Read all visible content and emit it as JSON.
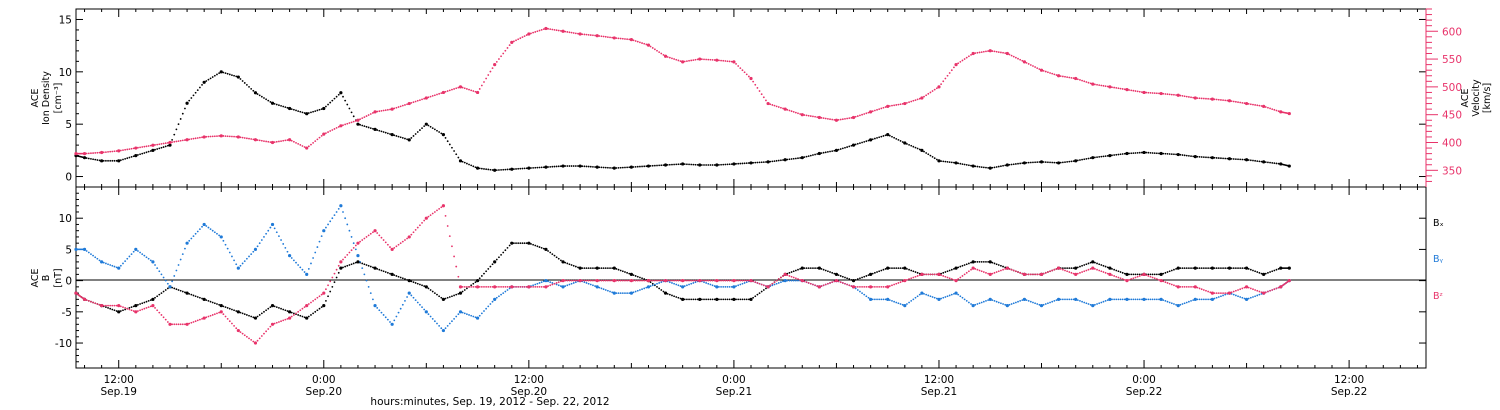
{
  "colors": {
    "black": "#000000",
    "pink": "#e8336a",
    "blue": "#1f7ad8"
  },
  "xaxis": {
    "title": "hours:minutes, Sep. 19, 2012 - Sep. 22, 2012",
    "ticks": [
      {
        "time": "12:00",
        "date": "Sep.19",
        "hours": 12
      },
      {
        "time": "0:00",
        "date": "Sep.20",
        "hours": 24
      },
      {
        "time": "12:00",
        "date": "Sep.20",
        "hours": 36
      },
      {
        "time": "0:00",
        "date": "Sep.21",
        "hours": 48
      },
      {
        "time": "12:00",
        "date": "Sep.21",
        "hours": 60
      },
      {
        "time": "0:00",
        "date": "Sep.22",
        "hours": 72
      },
      {
        "time": "12:00",
        "date": "Sep.22",
        "hours": 84
      }
    ],
    "range_hours": [
      9.5,
      88.5
    ]
  },
  "chart_data": [
    {
      "type": "scatter",
      "panel": "top",
      "ylabel_left": [
        "ACE",
        "Ion Density",
        "[cm⁻³]"
      ],
      "ylabel_right": [
        "ACE",
        "Velocity",
        "[km/s]"
      ],
      "ylim_left": [
        -1,
        16
      ],
      "ylim_right": [
        320,
        640
      ],
      "left_ticks": [
        "0",
        "5",
        "10",
        "15"
      ],
      "right_ticks": [
        "350",
        "400",
        "450",
        "500",
        "550",
        "600"
      ],
      "series": [
        {
          "name": "Ion Density",
          "color": "#000000",
          "axis": "left",
          "x": [
            9.5,
            10,
            11,
            12,
            13,
            14,
            15,
            16,
            17,
            18,
            19,
            20,
            21,
            22,
            23,
            24,
            25,
            26,
            27,
            28,
            29,
            30,
            31,
            32,
            33,
            34,
            35,
            36,
            37,
            38,
            39,
            40,
            41,
            42,
            43,
            44,
            45,
            46,
            47,
            48,
            49,
            50,
            51,
            52,
            53,
            54,
            55,
            56,
            57,
            58,
            59,
            60,
            61,
            62,
            63,
            64,
            65,
            66,
            67,
            68,
            69,
            70,
            71,
            72,
            73,
            74,
            75,
            76,
            77,
            78,
            79,
            80,
            80.5
          ],
          "y": [
            2.0,
            1.8,
            1.5,
            1.5,
            2.0,
            2.5,
            3.0,
            7.0,
            9.0,
            10.0,
            9.5,
            8.0,
            7.0,
            6.5,
            6.0,
            6.5,
            8.0,
            5.0,
            4.5,
            4.0,
            3.5,
            5.0,
            4.0,
            1.5,
            0.8,
            0.6,
            0.7,
            0.8,
            0.9,
            1.0,
            1.0,
            0.9,
            0.8,
            0.9,
            1.0,
            1.1,
            1.2,
            1.1,
            1.1,
            1.2,
            1.3,
            1.4,
            1.6,
            1.8,
            2.2,
            2.5,
            3.0,
            3.5,
            4.0,
            3.2,
            2.5,
            1.5,
            1.3,
            1.0,
            0.8,
            1.1,
            1.3,
            1.4,
            1.3,
            1.5,
            1.8,
            2.0,
            2.2,
            2.3,
            2.2,
            2.1,
            1.9,
            1.8,
            1.7,
            1.6,
            1.4,
            1.2,
            1.0
          ]
        },
        {
          "name": "Velocity",
          "color": "#e8336a",
          "axis": "right",
          "x": [
            9.5,
            10,
            11,
            12,
            13,
            14,
            15,
            16,
            17,
            18,
            19,
            20,
            21,
            22,
            23,
            24,
            25,
            26,
            27,
            28,
            29,
            30,
            31,
            32,
            33,
            34,
            35,
            36,
            37,
            38,
            39,
            40,
            41,
            42,
            43,
            44,
            45,
            46,
            47,
            48,
            49,
            50,
            51,
            52,
            53,
            54,
            55,
            56,
            57,
            58,
            59,
            60,
            61,
            62,
            63,
            64,
            65,
            66,
            67,
            68,
            69,
            70,
            71,
            72,
            73,
            74,
            75,
            76,
            77,
            78,
            79,
            80,
            80.5
          ],
          "y": [
            380,
            380,
            382,
            385,
            390,
            395,
            400,
            405,
            410,
            412,
            410,
            405,
            400,
            405,
            390,
            415,
            430,
            440,
            455,
            460,
            470,
            480,
            490,
            500,
            490,
            540,
            580,
            595,
            605,
            600,
            595,
            592,
            588,
            585,
            575,
            555,
            545,
            550,
            548,
            545,
            515,
            470,
            460,
            450,
            445,
            440,
            445,
            455,
            465,
            470,
            480,
            500,
            540,
            560,
            565,
            560,
            545,
            530,
            520,
            515,
            505,
            500,
            495,
            490,
            488,
            485,
            480,
            478,
            475,
            470,
            465,
            455,
            452
          ]
        }
      ]
    },
    {
      "type": "scatter",
      "panel": "bottom",
      "ylabel_left": [
        "ACE",
        "B",
        "[nT]"
      ],
      "ylim": [
        -14,
        15
      ],
      "left_ticks": [
        "-10",
        "-5",
        "0",
        "5",
        "10"
      ],
      "legend": [
        "Bₓ",
        "Bᵧ",
        "Bᶻ"
      ],
      "series": [
        {
          "name": "Bx",
          "color": "#000000",
          "x": [
            9.5,
            10,
            11,
            12,
            13,
            14,
            15,
            16,
            17,
            18,
            19,
            20,
            21,
            22,
            23,
            24,
            25,
            26,
            27,
            28,
            29,
            30,
            31,
            32,
            33,
            34,
            35,
            36,
            37,
            38,
            39,
            40,
            41,
            42,
            43,
            44,
            45,
            46,
            47,
            48,
            49,
            50,
            51,
            52,
            53,
            54,
            55,
            56,
            57,
            58,
            59,
            60,
            61,
            62,
            63,
            64,
            65,
            66,
            67,
            68,
            69,
            70,
            71,
            72,
            73,
            74,
            75,
            76,
            77,
            78,
            79,
            80,
            80.5
          ],
          "y": [
            -2,
            -3,
            -4,
            -5,
            -4,
            -3,
            -1,
            -2,
            -3,
            -4,
            -5,
            -6,
            -4,
            -5,
            -6,
            -4,
            2,
            3,
            2,
            1,
            0,
            -1,
            -3,
            -2,
            0,
            3,
            6,
            6,
            5,
            3,
            2,
            2,
            2,
            1,
            0,
            -2,
            -3,
            -3,
            -3,
            -3,
            -3,
            -1,
            1,
            2,
            2,
            1,
            0,
            1,
            2,
            2,
            1,
            1,
            2,
            3,
            3,
            2,
            1,
            1,
            2,
            2,
            3,
            2,
            1,
            1,
            1,
            2,
            2,
            2,
            2,
            2,
            1,
            2,
            2
          ]
        },
        {
          "name": "By",
          "color": "#1f7ad8",
          "x": [
            9.5,
            10,
            11,
            12,
            13,
            14,
            15,
            16,
            17,
            18,
            19,
            20,
            21,
            22,
            23,
            24,
            25,
            26,
            27,
            28,
            29,
            30,
            31,
            32,
            33,
            34,
            35,
            36,
            37,
            38,
            39,
            40,
            41,
            42,
            43,
            44,
            45,
            46,
            47,
            48,
            49,
            50,
            51,
            52,
            53,
            54,
            55,
            56,
            57,
            58,
            59,
            60,
            61,
            62,
            63,
            64,
            65,
            66,
            67,
            68,
            69,
            70,
            71,
            72,
            73,
            74,
            75,
            76,
            77,
            78,
            79,
            80,
            80.5
          ],
          "y": [
            5,
            5,
            3,
            2,
            5,
            3,
            -1,
            6,
            9,
            7,
            2,
            5,
            9,
            4,
            1,
            8,
            12,
            4,
            -4,
            -7,
            -2,
            -5,
            -8,
            -5,
            -6,
            -3,
            -1,
            -1,
            0,
            -1,
            0,
            -1,
            -2,
            -2,
            -1,
            0,
            -1,
            0,
            -1,
            -1,
            0,
            -1,
            0,
            0,
            -1,
            0,
            -1,
            -3,
            -3,
            -4,
            -2,
            -3,
            -2,
            -4,
            -3,
            -4,
            -3,
            -4,
            -3,
            -3,
            -4,
            -3,
            -3,
            -3,
            -3,
            -4,
            -3,
            -3,
            -2,
            -3,
            -2,
            -1,
            0
          ]
        },
        {
          "name": "Bz",
          "color": "#e8336a",
          "x": [
            9.5,
            10,
            11,
            12,
            13,
            14,
            15,
            16,
            17,
            18,
            19,
            20,
            21,
            22,
            23,
            24,
            25,
            26,
            27,
            28,
            29,
            30,
            31,
            32,
            33,
            34,
            35,
            36,
            37,
            38,
            39,
            40,
            41,
            42,
            43,
            44,
            45,
            46,
            47,
            48,
            49,
            50,
            51,
            52,
            53,
            54,
            55,
            56,
            57,
            58,
            59,
            60,
            61,
            62,
            63,
            64,
            65,
            66,
            67,
            68,
            69,
            70,
            71,
            72,
            73,
            74,
            75,
            76,
            77,
            78,
            79,
            80,
            80.5
          ],
          "y": [
            -2,
            -3,
            -4,
            -4,
            -5,
            -4,
            -7,
            -7,
            -6,
            -5,
            -8,
            -10,
            -7,
            -6,
            -4,
            -2,
            3,
            6,
            8,
            5,
            7,
            10,
            12,
            -1,
            -1,
            -1,
            -1,
            -1,
            -1,
            0,
            0,
            0,
            0,
            0,
            0,
            0,
            0,
            0,
            0,
            0,
            0,
            -1,
            1,
            0,
            -1,
            0,
            -1,
            -1,
            -1,
            0,
            1,
            1,
            0,
            2,
            1,
            2,
            1,
            1,
            2,
            1,
            2,
            1,
            0,
            1,
            0,
            -1,
            -1,
            -2,
            -2,
            -1,
            -2,
            -1,
            0
          ]
        }
      ]
    }
  ]
}
